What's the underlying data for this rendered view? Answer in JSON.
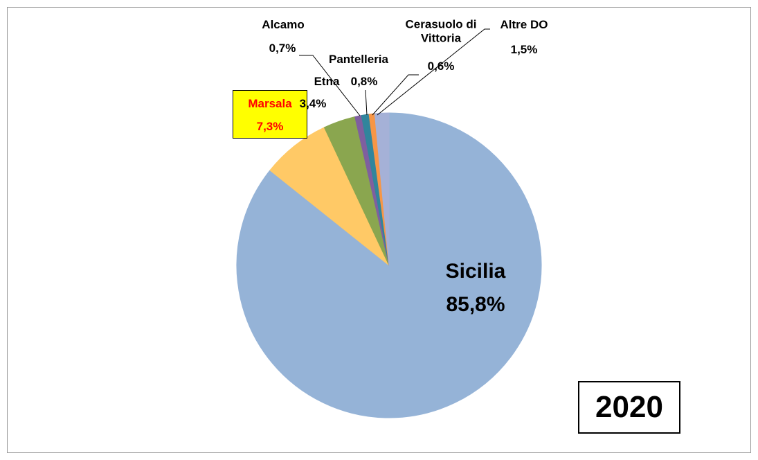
{
  "chart_data": {
    "type": "pie",
    "title": "2020",
    "categories": [
      "Sicilia",
      "Marsala",
      "Etna",
      "Alcamo",
      "Pantelleria",
      "Cerasuolo di Vittoria",
      "Altre DO"
    ],
    "values": [
      85.8,
      7.3,
      3.4,
      0.7,
      0.8,
      0.6,
      1.5
    ],
    "value_labels": [
      "85,8%",
      "7,3%",
      "3,4%",
      "0,7%",
      "0,8%",
      "0,6%",
      "1,5%"
    ],
    "colors": [
      "#95b3d7",
      "#ffc966",
      "#8aa64f",
      "#7f5f9f",
      "#31859c",
      "#f79646",
      "#a5b1d7"
    ]
  }
}
